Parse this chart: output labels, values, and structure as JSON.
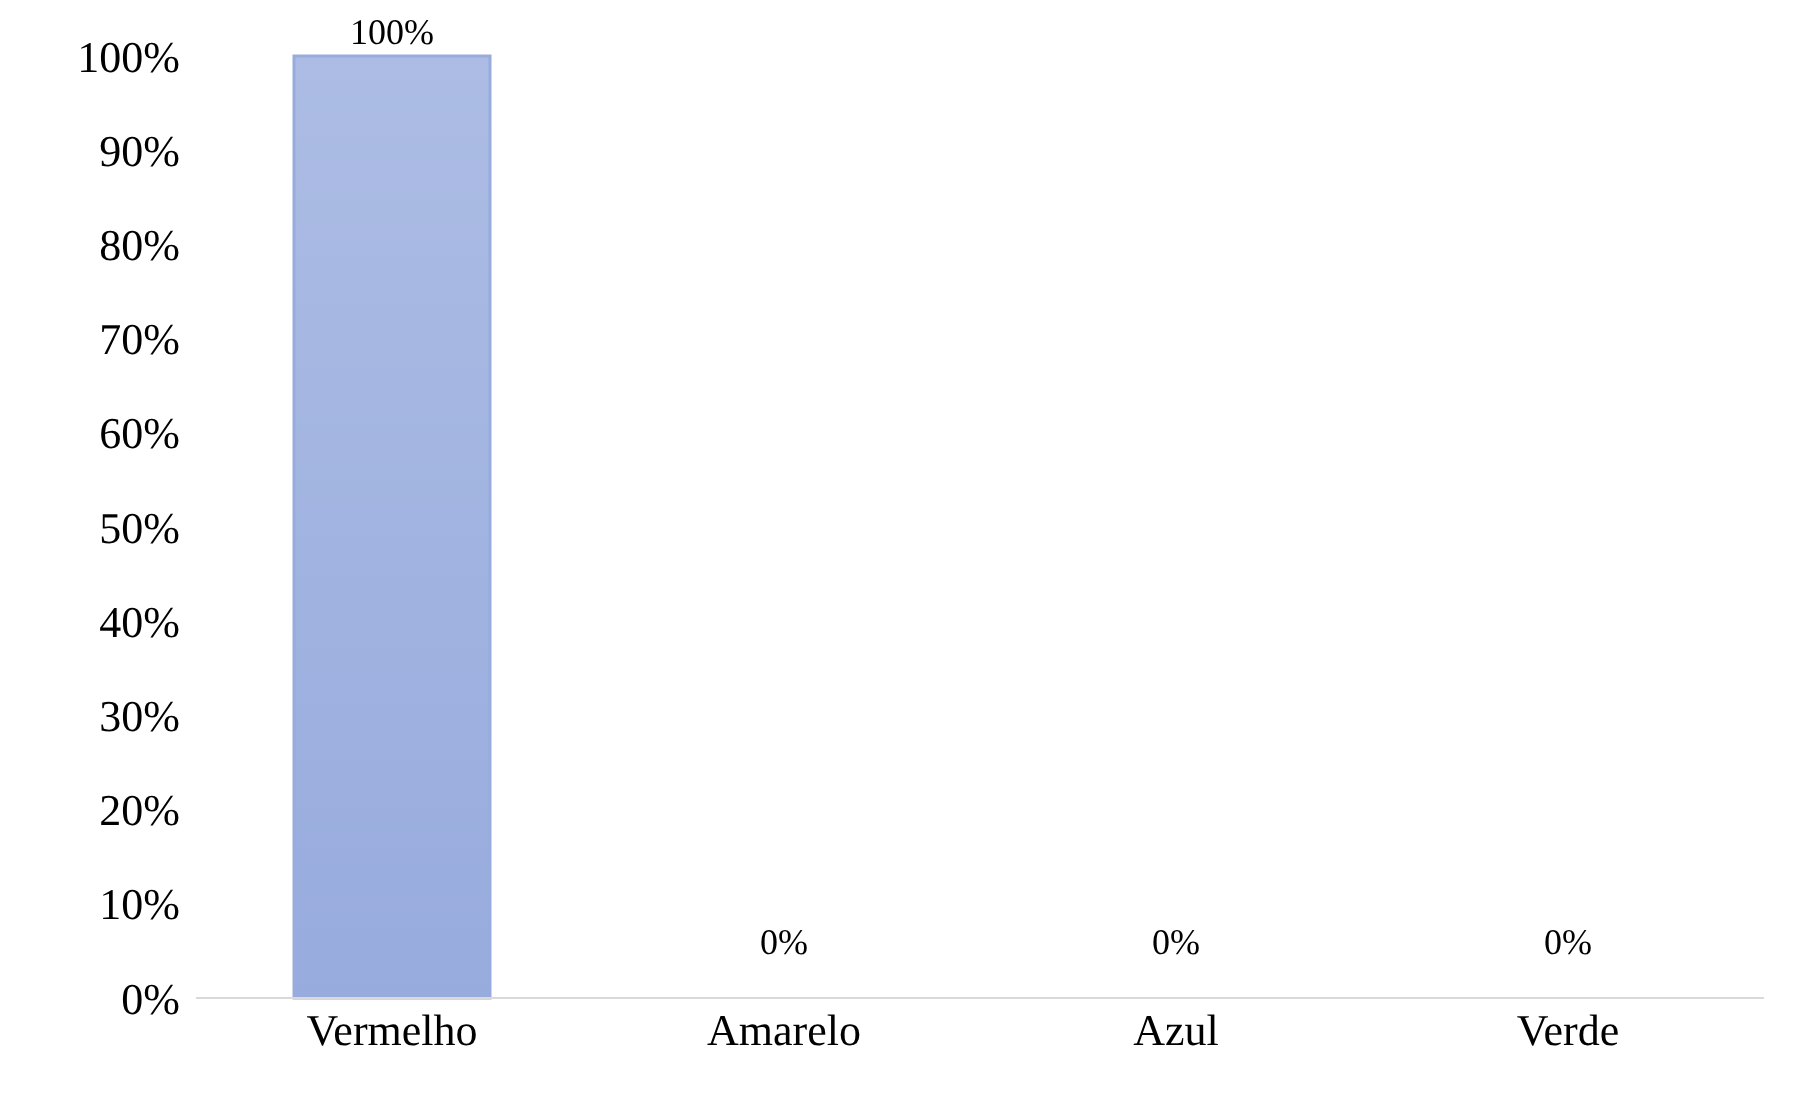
{
  "chart_data": {
    "type": "bar",
    "categories": [
      "Vermelho",
      "Amarelo",
      "Azul",
      "Verde"
    ],
    "values": [
      100,
      0,
      0,
      0
    ],
    "color": "#97abdd",
    "value_labels": [
      "100%",
      "0%",
      "0%",
      "0%"
    ],
    "ylim": [
      0,
      100
    ],
    "yticks": [
      {
        "value": 0,
        "label": "0%"
      },
      {
        "value": 10,
        "label": "10%"
      },
      {
        "value": 20,
        "label": "20%"
      },
      {
        "value": 30,
        "label": "30%"
      },
      {
        "value": 40,
        "label": "40%"
      },
      {
        "value": 50,
        "label": "50%"
      },
      {
        "value": 60,
        "label": "60%"
      },
      {
        "value": 70,
        "label": "70%"
      },
      {
        "value": 80,
        "label": "80%"
      },
      {
        "value": 90,
        "label": "90%"
      },
      {
        "value": 100,
        "label": "100%"
      }
    ],
    "grid": false,
    "legend": false
  }
}
